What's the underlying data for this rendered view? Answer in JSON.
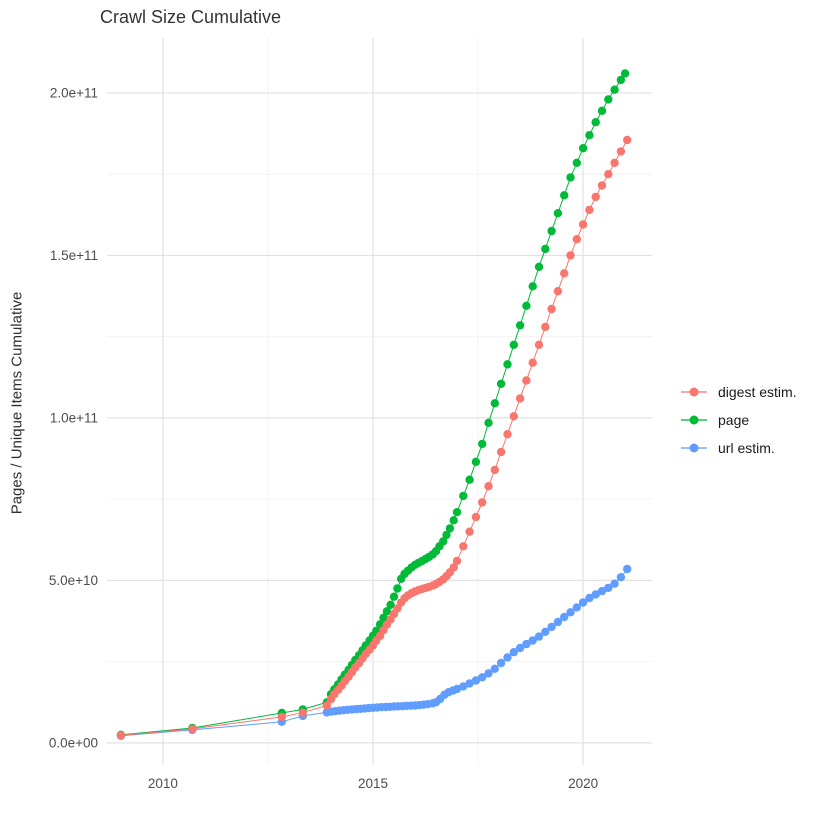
{
  "chart_data": {
    "type": "scatter",
    "title": "Crawl Size Cumulative",
    "xlabel": "",
    "ylabel": "Pages / Unique Items Cumulative",
    "grid": true,
    "legend_position": "right",
    "xlim": [
      2008.67,
      2021.64
    ],
    "ylim_e9": [
      -6.8,
      216.9
    ],
    "x_ticks": [
      {
        "value": 2010,
        "label": "2010"
      },
      {
        "value": 2015,
        "label": "2015"
      },
      {
        "value": 2020,
        "label": "2020"
      }
    ],
    "x_minor": [
      2012.5,
      2017.5
    ],
    "y_ticks": [
      {
        "value_e9": 0,
        "label": "0.0e+00"
      },
      {
        "value_e9": 50,
        "label": "5.0e+10"
      },
      {
        "value_e9": 100,
        "label": "1.0e+11"
      },
      {
        "value_e9": 150,
        "label": "1.5e+11"
      },
      {
        "value_e9": 200,
        "label": "2.0e+11"
      }
    ],
    "y_minor_e9": [
      25,
      75,
      125,
      175
    ],
    "points_format": "[year, cumulative_count_in_billions]",
    "series": [
      {
        "name": "digest estim.",
        "color": "#F8766D",
        "points_year_value_e9": [
          [
            2009.0,
            2.3
          ],
          [
            2010.7,
            4.3
          ],
          [
            2012.83,
            8.0
          ],
          [
            2013.33,
            9.3
          ],
          [
            2013.9,
            11.5
          ],
          [
            2014.0,
            13.5
          ],
          [
            2014.08,
            15
          ],
          [
            2014.17,
            16.3
          ],
          [
            2014.25,
            17.6
          ],
          [
            2014.33,
            19
          ],
          [
            2014.42,
            20.4
          ],
          [
            2014.5,
            21.8
          ],
          [
            2014.58,
            23.2
          ],
          [
            2014.67,
            24.6
          ],
          [
            2014.75,
            26
          ],
          [
            2014.83,
            27.4
          ],
          [
            2014.92,
            28.7
          ],
          [
            2015.0,
            30
          ],
          [
            2015.08,
            31.5
          ],
          [
            2015.17,
            33
          ],
          [
            2015.25,
            34.7
          ],
          [
            2015.33,
            36.4
          ],
          [
            2015.42,
            38
          ],
          [
            2015.5,
            39.7
          ],
          [
            2015.58,
            41.4
          ],
          [
            2015.67,
            43.2
          ],
          [
            2015.75,
            44.5
          ],
          [
            2015.83,
            45.4
          ],
          [
            2015.92,
            46.1
          ],
          [
            2016.0,
            46.6
          ],
          [
            2016.08,
            47
          ],
          [
            2016.17,
            47.4
          ],
          [
            2016.25,
            47.7
          ],
          [
            2016.33,
            48
          ],
          [
            2016.42,
            48.4
          ],
          [
            2016.5,
            48.9
          ],
          [
            2016.58,
            49.5
          ],
          [
            2016.67,
            50.3
          ],
          [
            2016.75,
            51.3
          ],
          [
            2016.83,
            52.5
          ],
          [
            2016.92,
            54
          ],
          [
            2017.0,
            56
          ],
          [
            2017.15,
            60.5
          ],
          [
            2017.3,
            65
          ],
          [
            2017.45,
            69.5
          ],
          [
            2017.6,
            74
          ],
          [
            2017.75,
            79
          ],
          [
            2017.9,
            84
          ],
          [
            2018.05,
            89.5
          ],
          [
            2018.2,
            95
          ],
          [
            2018.35,
            100.5
          ],
          [
            2018.5,
            106
          ],
          [
            2018.65,
            111.5
          ],
          [
            2018.8,
            117
          ],
          [
            2018.95,
            122.5
          ],
          [
            2019.1,
            128
          ],
          [
            2019.25,
            133.5
          ],
          [
            2019.4,
            139
          ],
          [
            2019.55,
            144.5
          ],
          [
            2019.7,
            150
          ],
          [
            2019.85,
            155
          ],
          [
            2020.0,
            159.5
          ],
          [
            2020.15,
            164
          ],
          [
            2020.3,
            168
          ],
          [
            2020.45,
            171.5
          ],
          [
            2020.6,
            175
          ],
          [
            2020.75,
            178.5
          ],
          [
            2020.9,
            182
          ],
          [
            2021.05,
            185.5
          ]
        ]
      },
      {
        "name": "page",
        "color": "#00BA38",
        "points_year_value_e9": [
          [
            2009.0,
            2.5
          ],
          [
            2010.7,
            4.6
          ],
          [
            2012.83,
            9.2
          ],
          [
            2013.33,
            10.3
          ],
          [
            2013.9,
            12.5
          ],
          [
            2014.0,
            15
          ],
          [
            2014.08,
            16.5
          ],
          [
            2014.17,
            18
          ],
          [
            2014.25,
            19.5
          ],
          [
            2014.33,
            21
          ],
          [
            2014.42,
            22.5
          ],
          [
            2014.5,
            24
          ],
          [
            2014.58,
            25.5
          ],
          [
            2014.67,
            27
          ],
          [
            2014.75,
            28.5
          ],
          [
            2014.83,
            30
          ],
          [
            2014.92,
            31.5
          ],
          [
            2015.0,
            33
          ],
          [
            2015.08,
            34.5
          ],
          [
            2015.17,
            36.5
          ],
          [
            2015.25,
            38.5
          ],
          [
            2015.33,
            40.5
          ],
          [
            2015.42,
            42.5
          ],
          [
            2015.5,
            45
          ],
          [
            2015.58,
            47.5
          ],
          [
            2015.67,
            50.5
          ],
          [
            2015.75,
            52
          ],
          [
            2015.83,
            53
          ],
          [
            2015.92,
            54
          ],
          [
            2016.0,
            54.8
          ],
          [
            2016.08,
            55.4
          ],
          [
            2016.17,
            56
          ],
          [
            2016.25,
            56.6
          ],
          [
            2016.33,
            57.2
          ],
          [
            2016.42,
            58
          ],
          [
            2016.5,
            59
          ],
          [
            2016.58,
            60.5
          ],
          [
            2016.67,
            62
          ],
          [
            2016.75,
            64
          ],
          [
            2016.83,
            66
          ],
          [
            2016.92,
            68.5
          ],
          [
            2017.0,
            71
          ],
          [
            2017.15,
            76
          ],
          [
            2017.3,
            81
          ],
          [
            2017.45,
            86.5
          ],
          [
            2017.6,
            92
          ],
          [
            2017.75,
            98.5
          ],
          [
            2017.9,
            104.5
          ],
          [
            2018.05,
            110.5
          ],
          [
            2018.2,
            116.5
          ],
          [
            2018.35,
            122.5
          ],
          [
            2018.5,
            128.5
          ],
          [
            2018.65,
            134.5
          ],
          [
            2018.8,
            140.5
          ],
          [
            2018.95,
            146.5
          ],
          [
            2019.1,
            152
          ],
          [
            2019.25,
            157.5
          ],
          [
            2019.4,
            163
          ],
          [
            2019.55,
            168.5
          ],
          [
            2019.7,
            174
          ],
          [
            2019.85,
            178.5
          ],
          [
            2020.0,
            183
          ],
          [
            2020.15,
            187
          ],
          [
            2020.3,
            191
          ],
          [
            2020.45,
            194.5
          ],
          [
            2020.6,
            198
          ],
          [
            2020.75,
            201
          ],
          [
            2020.9,
            204
          ],
          [
            2021.0,
            206
          ]
        ]
      },
      {
        "name": "url estim.",
        "color": "#619CFF",
        "points_year_value_e9": [
          [
            2009.0,
            2.2
          ],
          [
            2010.7,
            4.0
          ],
          [
            2012.83,
            6.5
          ],
          [
            2013.33,
            8.3
          ],
          [
            2013.9,
            9.4
          ],
          [
            2014.0,
            9.6
          ],
          [
            2014.1,
            9.75
          ],
          [
            2014.2,
            9.9
          ],
          [
            2014.3,
            10.05
          ],
          [
            2014.4,
            10.2
          ],
          [
            2014.5,
            10.3
          ],
          [
            2014.6,
            10.4
          ],
          [
            2014.7,
            10.5
          ],
          [
            2014.8,
            10.6
          ],
          [
            2014.9,
            10.7
          ],
          [
            2015.0,
            10.8
          ],
          [
            2015.1,
            10.9
          ],
          [
            2015.2,
            11.0
          ],
          [
            2015.3,
            11.05
          ],
          [
            2015.4,
            11.1
          ],
          [
            2015.5,
            11.2
          ],
          [
            2015.6,
            11.25
          ],
          [
            2015.7,
            11.3
          ],
          [
            2015.8,
            11.4
          ],
          [
            2015.9,
            11.45
          ],
          [
            2016.0,
            11.5
          ],
          [
            2016.1,
            11.6
          ],
          [
            2016.2,
            11.75
          ],
          [
            2016.3,
            11.9
          ],
          [
            2016.42,
            12.2
          ],
          [
            2016.5,
            12.5
          ],
          [
            2016.6,
            13.5
          ],
          [
            2016.7,
            14.8
          ],
          [
            2016.8,
            15.6
          ],
          [
            2016.9,
            16.1
          ],
          [
            2017.0,
            16.6
          ],
          [
            2017.15,
            17.4
          ],
          [
            2017.3,
            18.3
          ],
          [
            2017.45,
            19.2
          ],
          [
            2017.6,
            20.2
          ],
          [
            2017.75,
            21.4
          ],
          [
            2017.9,
            22.8
          ],
          [
            2018.05,
            24.6
          ],
          [
            2018.2,
            26.3
          ],
          [
            2018.35,
            27.9
          ],
          [
            2018.5,
            29.2
          ],
          [
            2018.65,
            30.4
          ],
          [
            2018.8,
            31.5
          ],
          [
            2018.95,
            32.7
          ],
          [
            2019.1,
            34.2
          ],
          [
            2019.25,
            35.7
          ],
          [
            2019.4,
            37.2
          ],
          [
            2019.55,
            38.7
          ],
          [
            2019.7,
            40.2
          ],
          [
            2019.85,
            41.7
          ],
          [
            2020.0,
            43.2
          ],
          [
            2020.15,
            44.6
          ],
          [
            2020.3,
            45.7
          ],
          [
            2020.45,
            46.7
          ],
          [
            2020.6,
            47.7
          ],
          [
            2020.75,
            49
          ],
          [
            2020.9,
            51
          ],
          [
            2021.05,
            53.5
          ]
        ]
      }
    ],
    "style": {
      "grid_major_color": "#E2E2E2",
      "grid_minor_color": "#F0F0F0",
      "axis_text_color": "#4D4D4D",
      "point_radius_px": 4.2
    }
  }
}
